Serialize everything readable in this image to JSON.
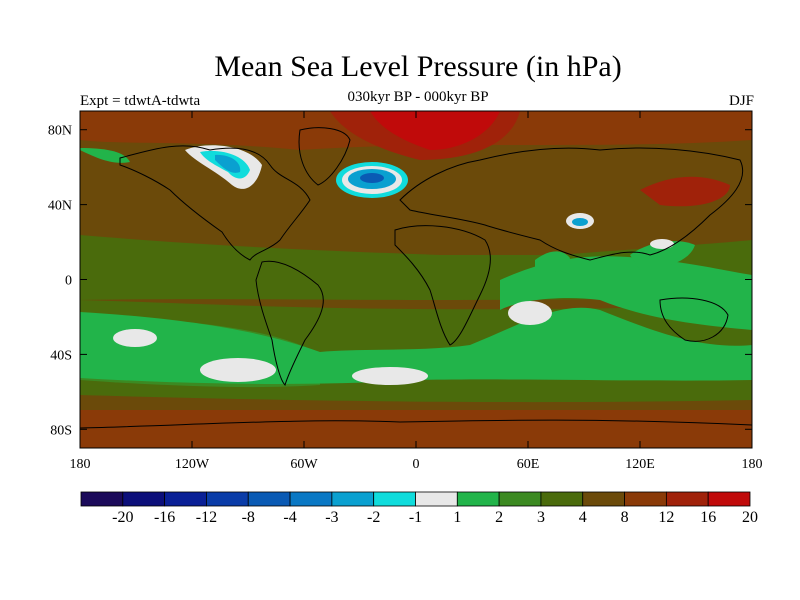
{
  "title": "Mean Sea Level Pressure (in hPa)",
  "left_label": "Expt = tdwtA-tdwta",
  "center_label": "030kyr BP - 000kyr BP",
  "right_label": "DJF",
  "axes": {
    "lon_ticks": [
      {
        "value": -180,
        "label": "180"
      },
      {
        "value": -120,
        "label": "120W"
      },
      {
        "value": -60,
        "label": "60W"
      },
      {
        "value": 0,
        "label": "0"
      },
      {
        "value": 60,
        "label": "60E"
      },
      {
        "value": 120,
        "label": "120E"
      },
      {
        "value": 180,
        "label": "180"
      }
    ],
    "lat_ticks": [
      {
        "value": 80,
        "label": "80N"
      },
      {
        "value": 40,
        "label": "40N"
      },
      {
        "value": 0,
        "label": "0"
      },
      {
        "value": -40,
        "label": "40S"
      },
      {
        "value": -80,
        "label": "80S"
      }
    ],
    "lat_range": [
      -90,
      90
    ],
    "lon_range": [
      -180,
      180
    ]
  },
  "colorbar": {
    "colors": [
      "#1b0a5a",
      "#0c0f7a",
      "#0a2096",
      "#0a3ca8",
      "#0a5ab4",
      "#0a78c4",
      "#0aa0d0",
      "#10dcdc",
      "#e8e8e8",
      "#22b44a",
      "#3c8a22",
      "#4a6b0c",
      "#6b4a0a",
      "#8a3a08",
      "#a0220a",
      "#c00a0a"
    ],
    "labels": [
      "-20",
      "-16",
      "-12",
      "-8",
      "-4",
      "-3",
      "-2",
      "-1",
      "1",
      "2",
      "3",
      "4",
      "8",
      "12",
      "16",
      "20"
    ]
  },
  "map_colors": {
    "base": "#6b4a0a",
    "band_4_8": "#4a6b0c",
    "band_3_4": "#3c8a22",
    "band_2_3": "#22b44a",
    "band_1_2": "#e8e8e8",
    "high_8_12": "#8a3a08",
    "high_12_16": "#a0220a",
    "high_16_20": "#c00a0a",
    "neg_cyan": "#10dcdc",
    "neg_blue": "#0aa0d0",
    "neg_deep": "#0a5ab4"
  }
}
